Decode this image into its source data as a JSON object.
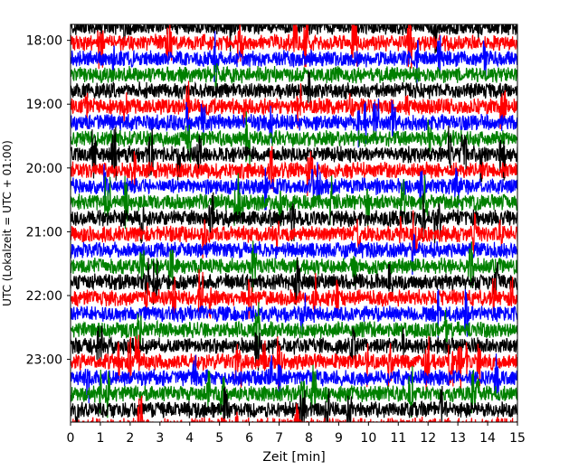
{
  "chart_data": {
    "type": "line",
    "title": "",
    "xlabel": "Zeit  [min]",
    "ylabel": "UTC (Lokalzeit = UTC + 01:00)",
    "xlim": [
      0,
      15
    ],
    "x_ticks": [
      0,
      1,
      2,
      3,
      4,
      5,
      6,
      7,
      8,
      9,
      10,
      11,
      12,
      13,
      14,
      15
    ],
    "x_tick_labels": [
      "0",
      "1",
      "2",
      "3",
      "4",
      "5",
      "6",
      "7",
      "8",
      "9",
      "10",
      "11",
      "12",
      "13",
      "14",
      "15"
    ],
    "y_ticks": [
      "18:00",
      "19:00",
      "20:00",
      "21:00",
      "22:00",
      "23:00"
    ],
    "y_start": "17:45",
    "y_end": "23:59",
    "trace_interval_min": 15,
    "trace_colors": [
      "#000000",
      "#ff0000",
      "#0000ff",
      "#008000"
    ],
    "grid": false,
    "legend": "none"
  }
}
